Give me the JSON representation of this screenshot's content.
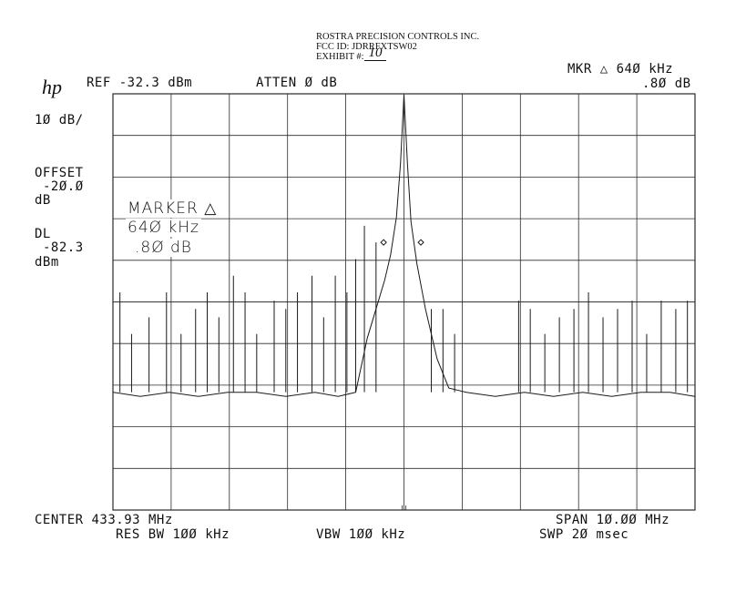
{
  "exhibit_label": {
    "company": "ROSTRA PRECISION CONTROLS INC.",
    "fcc_id": "FCC ID:  JDRRFXTSW02",
    "exhibit_prefix": "EXHIBIT #:",
    "exhibit_number": "10"
  },
  "instrument_logo": "hp",
  "header": {
    "ref": "REF -32.3 dBm",
    "atten": "ATTEN Ø dB",
    "mkr_line1": "MKR △ 64Ø kHz",
    "mkr_line2": ".8Ø dB"
  },
  "side": {
    "scale": "1Ø dB/",
    "offset_label": "OFFSET",
    "offset_value": "-2Ø.Ø",
    "offset_unit": "dB",
    "dl_label": "DL",
    "dl_value": "-82.3",
    "dl_unit": "dBm"
  },
  "marker_box": {
    "title": "MARKER △",
    "freq": "64Ø kHz",
    "level": ".8Ø dB"
  },
  "footer": {
    "center": "CENTER 433.93 MHz",
    "span": "SPAN 1Ø.ØØ MHz",
    "res_bw": "RES BW 1ØØ kHz",
    "vbw": "VBW 1ØØ kHz",
    "swp": "SWP 2Ø msec"
  },
  "colors": {
    "trace": "#1a1a1a",
    "grid": "#2a2a2a"
  },
  "chart_data": {
    "type": "line",
    "title": "",
    "xlabel": "",
    "ylabel": "",
    "reference_level_dbm": -32.3,
    "scale_db_per_div": 10,
    "center_freq_mhz": 433.93,
    "span_mhz": 10.0,
    "xlim_mhz": [
      428.93,
      438.93
    ],
    "ylim_dbm": [
      -132.3,
      -32.3
    ],
    "grid": true,
    "display_line_dbm": -82.3,
    "series": [
      {
        "x_mhz": [
          428.93,
          429.4,
          429.9,
          430.4,
          430.9,
          431.4,
          431.9,
          432.4,
          432.8,
          433.1,
          433.3,
          433.45,
          433.6,
          433.7,
          433.8,
          433.87,
          433.93,
          433.99,
          434.05,
          434.15,
          434.3,
          434.5,
          434.7,
          435.0,
          435.5,
          436.0,
          436.5,
          437.0,
          437.5,
          438.0,
          438.5,
          438.93
        ],
        "y_dbm": [
          -104,
          -105,
          -104,
          -105,
          -104,
          -104,
          -105,
          -104,
          -105,
          -104,
          -91,
          -84,
          -77,
          -71,
          -62,
          -49,
          -32.5,
          -49,
          -63,
          -73,
          -84,
          -96,
          -103,
          -104,
          -105,
          -104,
          -105,
          -104,
          -105,
          -104,
          -104,
          -105
        ]
      }
    ],
    "spurs": {
      "x_mhz": [
        429.05,
        429.25,
        429.55,
        429.85,
        430.1,
        430.35,
        430.55,
        430.75,
        431.0,
        431.2,
        431.4,
        431.7,
        431.9,
        432.1,
        432.35,
        432.55,
        432.75,
        432.95,
        433.1,
        433.25,
        433.45,
        434.4,
        434.6,
        434.8,
        435.9,
        436.1,
        436.35,
        436.6,
        436.85,
        437.1,
        437.35,
        437.6,
        437.85,
        438.1,
        438.35,
        438.6,
        438.8
      ],
      "y_dbm": [
        -80,
        -90,
        -86,
        -80,
        -90,
        -84,
        -80,
        -86,
        -76,
        -80,
        -90,
        -82,
        -84,
        -80,
        -76,
        -86,
        -76,
        -80,
        -72,
        -64,
        -68,
        -84,
        -84,
        -90,
        -82,
        -84,
        -90,
        -86,
        -84,
        -80,
        -86,
        -84,
        -82,
        -90,
        -82,
        -84,
        -82
      ]
    },
    "markers": [
      {
        "x_mhz": 433.58,
        "y_dbm": -68
      },
      {
        "x_mhz": 434.22,
        "y_dbm": -68
      }
    ]
  }
}
